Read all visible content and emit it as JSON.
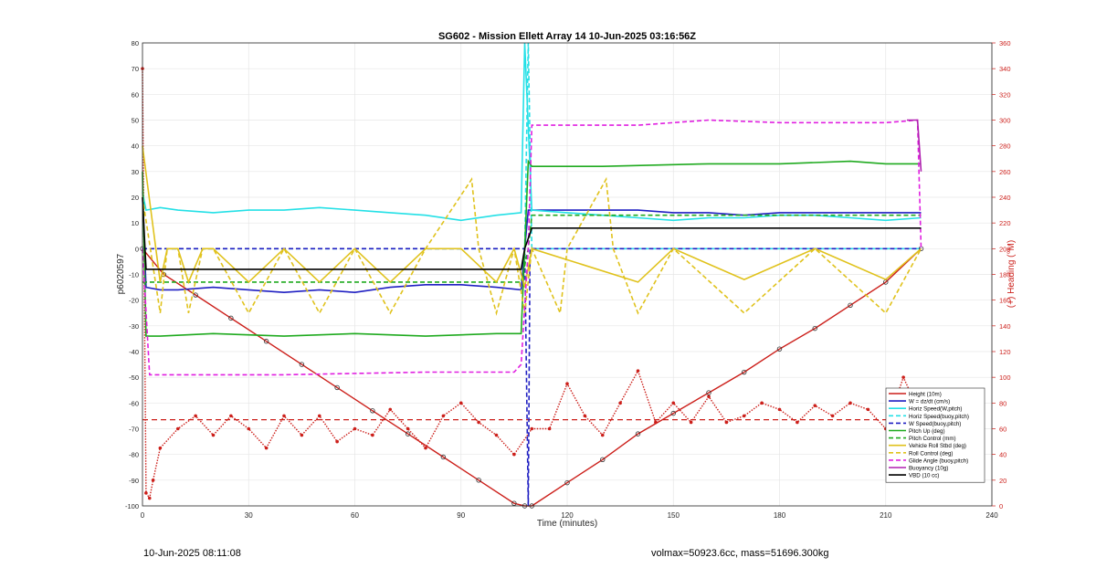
{
  "chart_data": {
    "type": "line",
    "title": "SG602 - Mission Ellett Array 14 10-Jun-2025 03:16:56Z",
    "xlabel": "Time (minutes)",
    "ylabel": "p6020597",
    "y2label": "(+) Heading (°M)",
    "xlim": [
      0,
      240
    ],
    "ylim": [
      -100,
      80
    ],
    "y2lim": [
      0,
      360
    ],
    "xticks": [
      0,
      30,
      60,
      90,
      120,
      150,
      180,
      210,
      240
    ],
    "yticks": [
      -100,
      -90,
      -80,
      -70,
      -60,
      -50,
      -40,
      -30,
      -20,
      -10,
      0,
      10,
      20,
      30,
      40,
      50,
      60,
      70,
      80
    ],
    "y2ticks": [
      0,
      20,
      40,
      60,
      80,
      100,
      120,
      140,
      160,
      180,
      200,
      220,
      240,
      260,
      280,
      300,
      320,
      340,
      360
    ],
    "grid": true,
    "legend_position": "lower-right",
    "series": [
      {
        "name": "Height (10m)",
        "color": "#cc1f1a",
        "style": "solid-marker",
        "x": [
          0,
          6,
          15,
          25,
          35,
          45,
          55,
          65,
          75,
          85,
          95,
          105,
          108,
          110,
          120,
          130,
          140,
          150,
          160,
          170,
          180,
          190,
          200,
          210,
          220
        ],
        "y": [
          0,
          -10,
          -18,
          -27,
          -36,
          -45,
          -54,
          -63,
          -72,
          -81,
          -90,
          -99,
          -100,
          -100,
          -91,
          -82,
          -72,
          -64,
          -56,
          -48,
          -39,
          -31,
          -22,
          -13,
          0
        ]
      },
      {
        "name": "W = dz/dt (cm/s)",
        "color": "#1f1fc2",
        "style": "solid",
        "x": [
          0,
          1,
          5,
          10,
          20,
          30,
          40,
          50,
          60,
          70,
          80,
          90,
          100,
          107,
          108,
          109,
          110,
          120,
          130,
          140,
          150,
          160,
          170,
          180,
          190,
          200,
          210,
          220
        ],
        "y": [
          20,
          -15,
          -16,
          -16,
          -15,
          -16,
          -17,
          -16,
          -17,
          -15,
          -14,
          -14,
          -15,
          -16,
          0,
          15,
          15,
          15,
          15,
          15,
          14,
          14,
          13,
          14,
          14,
          14,
          14,
          14
        ]
      },
      {
        "name": "Horiz Speed(W,pitch)",
        "color": "#24e0e6",
        "style": "solid",
        "x": [
          0,
          1,
          5,
          10,
          20,
          30,
          40,
          50,
          60,
          70,
          80,
          90,
          100,
          107,
          108,
          110,
          120,
          130,
          140,
          150,
          160,
          170,
          180,
          190,
          200,
          210,
          220
        ],
        "y": [
          22,
          15,
          16,
          15,
          14,
          15,
          15,
          16,
          15,
          14,
          13,
          11,
          13,
          14,
          80,
          15,
          14,
          13,
          12,
          11,
          12,
          12,
          13,
          13,
          12,
          11,
          12
        ]
      },
      {
        "name": "Horiz Speed(buoy,pitch)",
        "color": "#24e0e6",
        "style": "dashed",
        "x": [
          0,
          2,
          108,
          109,
          110,
          220
        ],
        "y": [
          0,
          0,
          0,
          80,
          0,
          0
        ]
      },
      {
        "name": "W Speed(buoy,pitch)",
        "color": "#1f1fc2",
        "style": "dashed",
        "x": [
          0,
          2,
          108,
          109,
          109.5,
          220
        ],
        "y": [
          0,
          0,
          0,
          -100,
          0,
          0
        ]
      },
      {
        "name": "Pitch Up (deg)",
        "color": "#1faa1f",
        "style": "solid",
        "x": [
          0,
          1,
          5,
          20,
          40,
          60,
          80,
          100,
          107,
          108,
          109,
          110,
          130,
          160,
          180,
          200,
          210,
          220
        ],
        "y": [
          30,
          -34,
          -34,
          -33,
          -34,
          -33,
          -34,
          -33,
          -33,
          0,
          34,
          32,
          32,
          33,
          33,
          34,
          33,
          33
        ]
      },
      {
        "name": "Pitch Control (mm)",
        "color": "#1faa1f",
        "style": "dashed",
        "x": [
          0,
          5,
          107,
          109,
          110,
          220
        ],
        "y": [
          -13,
          -13,
          -13,
          0,
          13,
          13
        ]
      },
      {
        "name": "Vehicle Roll Stbd (deg)",
        "color": "#e0c21c",
        "style": "solid",
        "x": [
          0,
          5,
          7,
          10,
          13,
          17,
          20,
          30,
          40,
          50,
          60,
          70,
          80,
          90,
          100,
          105,
          108,
          110,
          140,
          150,
          170,
          190,
          210,
          220
        ],
        "y": [
          40,
          -13,
          0,
          0,
          -13,
          0,
          0,
          -13,
          0,
          -13,
          0,
          -13,
          0,
          0,
          -13,
          0,
          -15,
          0,
          -13,
          0,
          -12,
          0,
          -12,
          0
        ]
      },
      {
        "name": "Roll Control (deg)",
        "color": "#e0c21c",
        "style": "dashed",
        "x": [
          0,
          5,
          7,
          10,
          13,
          17,
          20,
          30,
          40,
          50,
          60,
          70,
          80,
          93,
          95,
          100,
          105,
          108,
          110,
          118,
          120,
          131,
          133,
          140,
          150,
          170,
          190,
          210,
          220
        ],
        "y": [
          20,
          -25,
          0,
          0,
          -25,
          0,
          0,
          -25,
          0,
          -25,
          0,
          -25,
          0,
          27,
          0,
          -25,
          0,
          -25,
          0,
          -25,
          0,
          27,
          0,
          -25,
          0,
          -25,
          0,
          -25,
          0
        ]
      },
      {
        "name": "Glide Angle (buoy,pitch)",
        "color": "#e020e0",
        "style": "dashed",
        "x": [
          0,
          2,
          40,
          80,
          105,
          107,
          109,
          110,
          140,
          160,
          180,
          200,
          210,
          219,
          220
        ],
        "y": [
          0,
          -49,
          -49,
          -48,
          -48,
          -45,
          0,
          48,
          48,
          50,
          49,
          49,
          49,
          50,
          0
        ]
      },
      {
        "name": "Buoyancy (10g)",
        "color": "#b01fb0",
        "style": "solid",
        "x": [
          216,
          219,
          220
        ],
        "y": [
          50,
          50,
          30
        ]
      },
      {
        "name": "VBD (10 cc)",
        "color": "#000000",
        "style": "solid",
        "x": [
          0,
          1,
          107,
          108,
          110,
          220
        ],
        "y": [
          20,
          -8,
          -8,
          0,
          8,
          8
        ]
      }
    ],
    "heading_series": {
      "name": "Heading",
      "color": "#cc1f1a",
      "axis": "right",
      "x": [
        0,
        1,
        2,
        3,
        5,
        10,
        15,
        20,
        25,
        30,
        35,
        40,
        45,
        50,
        55,
        60,
        65,
        70,
        75,
        80,
        85,
        90,
        95,
        100,
        105,
        110,
        115,
        120,
        125,
        130,
        135,
        140,
        145,
        150,
        155,
        160,
        165,
        170,
        175,
        180,
        185,
        190,
        195,
        200,
        205,
        210,
        215,
        220
      ],
      "y": [
        340,
        10,
        6,
        20,
        45,
        60,
        70,
        55,
        70,
        60,
        45,
        70,
        55,
        70,
        50,
        60,
        55,
        75,
        60,
        45,
        70,
        80,
        65,
        55,
        40,
        60,
        60,
        95,
        70,
        55,
        80,
        105,
        65,
        80,
        65,
        85,
        65,
        70,
        80,
        75,
        65,
        78,
        70,
        80,
        75,
        60,
        100,
        70
      ]
    },
    "heading_mean": 67
  },
  "footer": {
    "left": "10-Jun-2025 08:11:08",
    "right": "volmax=50923.6cc, mass=51696.300kg"
  }
}
